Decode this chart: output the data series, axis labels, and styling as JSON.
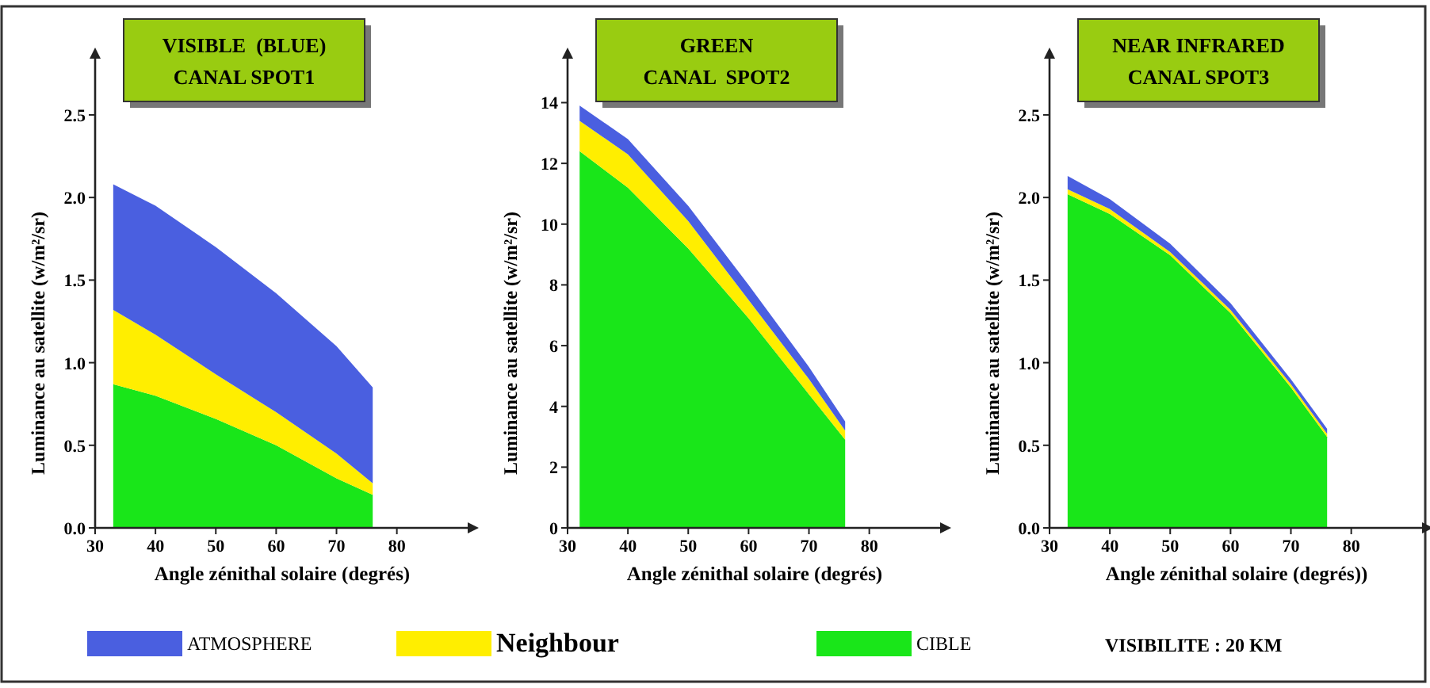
{
  "chart_data": [
    {
      "type": "area",
      "stacked": true,
      "title": "VISIBLE  (BLUE)",
      "subtitle": "CANAL SPOT1",
      "xlabel": "Angle zénithal solaire (degrés)",
      "ylabel": "Luminance au satellite (w/m²/sr)",
      "x": [
        33,
        40,
        50,
        60,
        70,
        76
      ],
      "xlim": [
        30,
        92
      ],
      "xticks": [
        30,
        40,
        50,
        60,
        70,
        80
      ],
      "ylim": [
        0,
        2.85
      ],
      "yticks": [
        {
          "value": 0,
          "label": "0.0"
        },
        0.5,
        {
          "value": 1,
          "label": "1.0"
        },
        1.5,
        {
          "value": 2,
          "label": "2.0"
        },
        2.5
      ],
      "legend": "bottom",
      "annotations": [
        "VISIBILITE : 20 KM"
      ],
      "series": [
        {
          "name": "CIBLE",
          "color": "#19e619",
          "values": [
            0.87,
            0.8,
            0.66,
            0.5,
            0.3,
            0.2
          ]
        },
        {
          "name": "Neighbour",
          "color": "#ffee00",
          "values": [
            0.45,
            0.37,
            0.27,
            0.2,
            0.15,
            0.07
          ]
        },
        {
          "name": "ATMOSPHERE",
          "color": "#4a5fe0",
          "values": [
            0.76,
            0.78,
            0.77,
            0.72,
            0.65,
            0.58
          ]
        }
      ]
    },
    {
      "type": "area",
      "stacked": true,
      "title": "GREEN",
      "subtitle": "CANAL  SPOT2",
      "xlabel": "Angle zénithal solaire (degrés)",
      "ylabel": "Luminance au satellite (w/m²/sr)",
      "x": [
        32,
        40,
        50,
        60,
        70,
        76
      ],
      "xlim": [
        30,
        92
      ],
      "xticks": [
        30,
        40,
        50,
        60,
        70,
        80
      ],
      "ylim": [
        0,
        15.5
      ],
      "yticks": [
        0,
        2,
        4,
        6,
        8,
        10,
        12,
        14
      ],
      "series": [
        {
          "color": "#19e619",
          "values": [
            12.4,
            11.2,
            9.2,
            6.9,
            4.4,
            2.9
          ]
        },
        {
          "color": "#ffee00",
          "values": [
            1.0,
            1.1,
            0.9,
            0.6,
            0.5,
            0.3
          ]
        },
        {
          "color": "#4a5fe0",
          "values": [
            0.5,
            0.5,
            0.5,
            0.5,
            0.4,
            0.3
          ]
        }
      ]
    },
    {
      "type": "area",
      "stacked": true,
      "title": "NEAR INFRARED",
      "subtitle": "CANAL SPOT3",
      "xlabel": "Angle zénithal solaire (degrés))",
      "ylabel": "Luminance au satellite (w/m²/sr)",
      "x": [
        33,
        40,
        50,
        60,
        70,
        76
      ],
      "xlim": [
        30,
        92
      ],
      "xticks": [
        30,
        40,
        50,
        60,
        70,
        80
      ],
      "ylim": [
        0,
        2.85
      ],
      "yticks": [
        {
          "value": 0,
          "label": "0.0"
        },
        0.5,
        {
          "value": 1,
          "label": "1.0"
        },
        1.5,
        {
          "value": 2,
          "label": "2.0"
        },
        2.5
      ],
      "series": [
        {
          "color": "#19e619",
          "values": [
            2.02,
            1.9,
            1.65,
            1.3,
            0.85,
            0.55
          ]
        },
        {
          "color": "#ffee00",
          "values": [
            0.03,
            0.03,
            0.02,
            0.02,
            0.02,
            0.02
          ]
        },
        {
          "color": "#4a5fe0",
          "values": [
            0.08,
            0.06,
            0.05,
            0.04,
            0.03,
            0.03
          ]
        }
      ]
    }
  ]
}
